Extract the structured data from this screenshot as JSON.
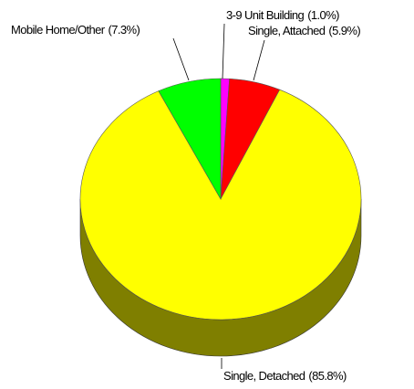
{
  "chart_data": {
    "type": "pie",
    "categories": [
      "3-9 Unit Building",
      "Single, Attached",
      "Single, Detached",
      "Mobile Home/Other"
    ],
    "values": [
      1.0,
      5.9,
      85.8,
      7.3
    ],
    "value_labels": [
      "(1.0%)",
      "(5.9%)",
      "(85.8%)",
      "(7.3%)"
    ],
    "colors": [
      "#ff00ff",
      "#ff0000",
      "#ffff00",
      "#00ff00"
    ]
  }
}
